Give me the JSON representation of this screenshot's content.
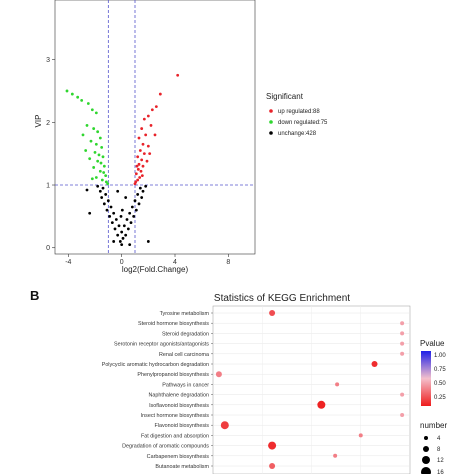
{
  "chart_data": [
    {
      "type": "scatter",
      "title": "",
      "xlabel": "log2(Fold.Change)",
      "ylabel": "VIP",
      "xlim": [
        -5,
        10
      ],
      "ylim": [
        -0.1,
        3.95
      ],
      "x_ticks": [
        -4,
        0,
        4,
        8
      ],
      "y_ticks": [
        0,
        1,
        2,
        3
      ],
      "thresholds": {
        "x": [
          -1,
          1
        ],
        "y": 1
      },
      "legend": {
        "title": "Significant",
        "placement": "right",
        "entries": [
          "up regulated:88",
          "down regulated:75",
          "unchange:428"
        ]
      },
      "colors": {
        "up": "#e8232a",
        "down": "#2fd62f",
        "unchange": "#000000",
        "threshold": "#5555cc"
      },
      "series": [
        {
          "name": "up regulated:88",
          "points": [
            [
              4.2,
              2.75
            ],
            [
              2.9,
              2.45
            ],
            [
              2.6,
              2.25
            ],
            [
              2.3,
              2.2
            ],
            [
              2.0,
              2.1
            ],
            [
              1.7,
              2.05
            ],
            [
              2.2,
              1.95
            ],
            [
              1.5,
              1.9
            ],
            [
              1.8,
              1.8
            ],
            [
              2.5,
              1.8
            ],
            [
              1.3,
              1.75
            ],
            [
              1.6,
              1.65
            ],
            [
              2.0,
              1.62
            ],
            [
              1.4,
              1.55
            ],
            [
              1.7,
              1.5
            ],
            [
              1.2,
              1.45
            ],
            [
              1.5,
              1.4
            ],
            [
              1.9,
              1.38
            ],
            [
              1.3,
              1.33
            ],
            [
              1.6,
              1.3
            ],
            [
              1.25,
              1.25
            ],
            [
              1.45,
              1.22
            ],
            [
              1.1,
              1.18
            ],
            [
              1.35,
              1.12
            ],
            [
              1.2,
              1.08
            ],
            [
              1.05,
              1.05
            ],
            [
              1.55,
              1.15
            ],
            [
              1.15,
              1.3
            ],
            [
              2.1,
              1.5
            ],
            [
              1.0,
              1.02
            ]
          ]
        },
        {
          "name": "down regulated:75",
          "points": [
            [
              -4.1,
              2.5
            ],
            [
              -3.7,
              2.45
            ],
            [
              -3.3,
              2.4
            ],
            [
              -3.0,
              2.35
            ],
            [
              -2.5,
              2.3
            ],
            [
              -2.2,
              2.2
            ],
            [
              -1.9,
              2.15
            ],
            [
              -2.6,
              1.95
            ],
            [
              -2.1,
              1.9
            ],
            [
              -1.8,
              1.85
            ],
            [
              -2.9,
              1.8
            ],
            [
              -1.6,
              1.75
            ],
            [
              -2.3,
              1.7
            ],
            [
              -1.9,
              1.65
            ],
            [
              -1.5,
              1.6
            ],
            [
              -2.7,
              1.55
            ],
            [
              -2.0,
              1.52
            ],
            [
              -1.7,
              1.48
            ],
            [
              -1.4,
              1.45
            ],
            [
              -2.4,
              1.42
            ],
            [
              -1.8,
              1.38
            ],
            [
              -1.55,
              1.35
            ],
            [
              -1.3,
              1.3
            ],
            [
              -2.1,
              1.28
            ],
            [
              -1.6,
              1.22
            ],
            [
              -1.35,
              1.2
            ],
            [
              -1.2,
              1.15
            ],
            [
              -1.9,
              1.12
            ],
            [
              -1.45,
              1.08
            ],
            [
              -1.15,
              1.05
            ],
            [
              -2.2,
              1.1
            ],
            [
              -1.05,
              1.02
            ]
          ]
        },
        {
          "name": "unchange:428",
          "points": [
            [
              -0.1,
              0.1
            ],
            [
              0.1,
              0.15
            ],
            [
              -0.3,
              0.2
            ],
            [
              0.3,
              0.2
            ],
            [
              -0.5,
              0.3
            ],
            [
              0.5,
              0.3
            ],
            [
              0.0,
              0.25
            ],
            [
              -0.7,
              0.4
            ],
            [
              0.7,
              0.4
            ],
            [
              -0.2,
              0.35
            ],
            [
              0.2,
              0.35
            ],
            [
              -0.9,
              0.5
            ],
            [
              0.9,
              0.5
            ],
            [
              -0.4,
              0.45
            ],
            [
              0.4,
              0.45
            ],
            [
              -1.1,
              0.6
            ],
            [
              1.1,
              0.6
            ],
            [
              -0.6,
              0.55
            ],
            [
              0.6,
              0.55
            ],
            [
              -1.3,
              0.7
            ],
            [
              1.3,
              0.7
            ],
            [
              -0.8,
              0.65
            ],
            [
              0.8,
              0.65
            ],
            [
              -1.5,
              0.8
            ],
            [
              1.5,
              0.8
            ],
            [
              -1.0,
              0.75
            ],
            [
              1.0,
              0.75
            ],
            [
              -1.6,
              0.9
            ],
            [
              1.6,
              0.9
            ],
            [
              -1.2,
              0.85
            ],
            [
              1.2,
              0.85
            ],
            [
              -1.4,
              0.95
            ],
            [
              1.4,
              0.95
            ],
            [
              0.0,
              0.05
            ],
            [
              -0.05,
              0.5
            ],
            [
              0.05,
              0.6
            ],
            [
              -1.8,
              0.98
            ],
            [
              1.8,
              0.98
            ],
            [
              -2.6,
              0.92
            ],
            [
              -2.4,
              0.55
            ],
            [
              -0.3,
              0.9
            ],
            [
              0.3,
              0.8
            ],
            [
              2.0,
              0.1
            ],
            [
              0.6,
              0.05
            ],
            [
              -0.6,
              0.1
            ]
          ]
        }
      ]
    },
    {
      "type": "scatter",
      "title": "Statistics of KEGG Enrichment",
      "categories": [
        "Tyrosine metabolism",
        "Steroid hormone biosynthesis",
        "Steroid degradation",
        "Serotonin receptor agonists/antagonists",
        "Renal cell carcinoma",
        "Polycyclic aromatic hydrocarbon degradation",
        "Phenylpropanoid biosynthesis",
        "Pathways in cancer",
        "Naphthalene degradation",
        "Isoflavonoid biosynthesis",
        "Insect hormone biosynthesis",
        "Flavonoid biosynthesis",
        "Fat digestion and absorption",
        "Degradation of aromatic compounds",
        "Carbapenem biosynthesis",
        "Butanoate metabolism"
      ],
      "legend": {
        "color_title": "Pvalue",
        "color_ticks": [
          "1.00",
          "0.75",
          "0.50",
          "0.25"
        ],
        "size_title": "number",
        "size_ticks": [
          "4",
          "8",
          "12",
          "16"
        ]
      },
      "colors": {
        "low": "#ee1c1c",
        "mid": "#f4c0cc",
        "high": "#1f1fe8"
      },
      "points": [
        {
          "category": "Tyrosine metabolism",
          "x": 0.3,
          "size": 8,
          "pvalue": 0.15
        },
        {
          "category": "Steroid hormone biosynthesis",
          "x": 0.96,
          "size": 4,
          "pvalue": 0.4
        },
        {
          "category": "Steroid degradation",
          "x": 0.96,
          "size": 4,
          "pvalue": 0.4
        },
        {
          "category": "Serotonin receptor agonists/antagonists",
          "x": 0.96,
          "size": 4,
          "pvalue": 0.4
        },
        {
          "category": "Renal cell carcinoma",
          "x": 0.96,
          "size": 4,
          "pvalue": 0.4
        },
        {
          "category": "Polycyclic aromatic hydrocarbon degradation",
          "x": 0.82,
          "size": 8,
          "pvalue": 0.05
        },
        {
          "category": "Phenylpropanoid biosynthesis",
          "x": 0.03,
          "size": 8,
          "pvalue": 0.3
        },
        {
          "category": "Pathways in cancer",
          "x": 0.63,
          "size": 4,
          "pvalue": 0.3
        },
        {
          "category": "Naphthalene degradation",
          "x": 0.96,
          "size": 4,
          "pvalue": 0.4
        },
        {
          "category": "Isoflavonoid biosynthesis",
          "x": 0.55,
          "size": 12,
          "pvalue": 0.02
        },
        {
          "category": "Insect hormone biosynthesis",
          "x": 0.96,
          "size": 4,
          "pvalue": 0.4
        },
        {
          "category": "Flavonoid biosynthesis",
          "x": 0.06,
          "size": 12,
          "pvalue": 0.1
        },
        {
          "category": "Fat digestion and absorption",
          "x": 0.75,
          "size": 4,
          "pvalue": 0.3
        },
        {
          "category": "Degradation of aromatic compounds",
          "x": 0.3,
          "size": 12,
          "pvalue": 0.05
        },
        {
          "category": "Carbapenem biosynthesis",
          "x": 0.62,
          "size": 4,
          "pvalue": 0.3
        },
        {
          "category": "Butanoate metabolism",
          "x": 0.3,
          "size": 8,
          "pvalue": 0.2
        }
      ]
    }
  ],
  "panel_b": {
    "label": "B"
  }
}
